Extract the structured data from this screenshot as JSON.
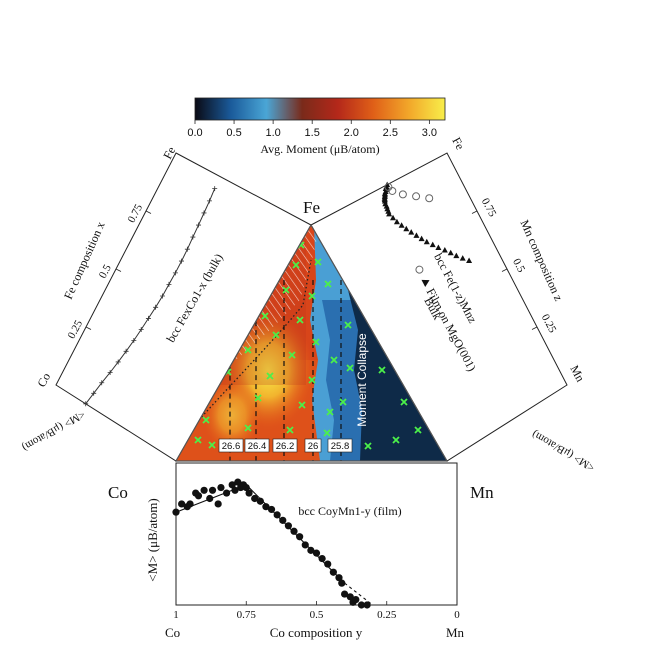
{
  "colorbar": {
    "label": "Avg. Moment (μB/atom)",
    "ticks": [
      "0.0",
      "0.5",
      "1.0",
      "1.5",
      "2.0",
      "2.5",
      "3.0"
    ],
    "tick_values": [
      0.0,
      0.5,
      1.0,
      1.5,
      2.0,
      2.5,
      3.0
    ],
    "range": [
      0.0,
      3.2
    ],
    "colormap": [
      "#0a0a14",
      "#1a5a9a",
      "#4aa6d6",
      "#7a2a1a",
      "#b4281a",
      "#e06018",
      "#f2a82a",
      "#f8ee4a"
    ]
  },
  "ternary": {
    "corners": {
      "top": "Fe",
      "left": "Co",
      "right": "Mn"
    },
    "overlay_label": "Moment Collapse",
    "boxes": [
      "26.6",
      "26.4",
      "26.2",
      "26",
      "25.8"
    ]
  },
  "chart_data": [
    {
      "type": "line",
      "title": "bcc FexCo1-x (bulk)",
      "xlabel": "Fe composition x",
      "ylabel": "<M> (μB/atom)",
      "ticks": [
        "0.25",
        "0.5",
        "0.75"
      ],
      "corners": [
        "Fe",
        "Co"
      ],
      "x": [
        0.0,
        0.05,
        0.1,
        0.15,
        0.2,
        0.25,
        0.3,
        0.35,
        0.4,
        0.45,
        0.5,
        0.55,
        0.6,
        0.65,
        0.7,
        0.75,
        0.8,
        0.85,
        0.9,
        0.95
      ],
      "values": [
        1.65,
        1.75,
        1.85,
        1.97,
        2.07,
        2.16,
        2.24,
        2.3,
        2.35,
        2.4,
        2.43,
        2.44,
        2.45,
        2.44,
        2.42,
        2.38,
        2.35,
        2.31,
        2.27,
        2.22
      ],
      "ylim": [
        0,
        3
      ]
    },
    {
      "type": "scatter",
      "title": "bcc Fe(1-z)Mnz",
      "xlabel": "Mn composition z",
      "ylabel": "<M> (μB/atom)",
      "ticks": [
        "0.25",
        "0.5",
        "0.75"
      ],
      "corners": [
        "Fe",
        "Mn"
      ],
      "legend": [
        "Film on MgO(001)",
        "Bulk"
      ],
      "series": [
        {
          "name": "Film on MgO(001)",
          "marker": "triangle",
          "x": [
            0.0,
            0.005,
            0.01,
            0.015,
            0.02,
            0.025,
            0.03,
            0.035,
            0.04,
            0.045,
            0.05,
            0.06,
            0.07,
            0.08,
            0.09,
            0.1,
            0.12,
            0.14,
            0.16,
            0.18,
            0.2,
            0.22,
            0.24,
            0.26,
            0.28,
            0.3,
            0.32,
            0.34,
            0.36,
            0.38,
            0.4
          ],
          "values": [
            2.2,
            2.25,
            2.3,
            2.28,
            2.35,
            2.4,
            2.42,
            2.45,
            2.48,
            2.5,
            2.52,
            2.55,
            2.55,
            2.57,
            2.58,
            2.6,
            2.55,
            2.5,
            2.42,
            2.34,
            2.25,
            2.15,
            2.05,
            1.95,
            1.82,
            1.7,
            1.55,
            1.42,
            1.3,
            1.15,
            1.0
          ]
        },
        {
          "name": "Bulk",
          "marker": "circle",
          "x": [
            0.01,
            0.03,
            0.06,
            0.09,
            0.12
          ],
          "values": [
            2.2,
            2.15,
            1.9,
            1.55,
            1.2
          ]
        }
      ],
      "ylim": [
        0,
        3
      ]
    },
    {
      "type": "scatter",
      "title": "bcc CoyMn1-y (film)",
      "xlabel": "Co composition y",
      "ylabel": "<M> (μB/atom)",
      "xticks": [
        "1",
        "0.75",
        "0.5",
        "0.25",
        "0"
      ],
      "corners": [
        "Co",
        "Mn"
      ],
      "x": [
        1.0,
        0.98,
        0.96,
        0.95,
        0.93,
        0.92,
        0.9,
        0.88,
        0.87,
        0.85,
        0.84,
        0.82,
        0.8,
        0.79,
        0.78,
        0.77,
        0.76,
        0.75,
        0.74,
        0.72,
        0.7,
        0.68,
        0.66,
        0.64,
        0.62,
        0.6,
        0.58,
        0.56,
        0.54,
        0.52,
        0.5,
        0.48,
        0.46,
        0.44,
        0.42,
        0.41,
        0.4,
        0.38,
        0.37,
        0.36,
        0.34,
        0.32
      ],
      "values": [
        1.7,
        1.85,
        1.8,
        1.85,
        2.05,
        2.0,
        2.1,
        1.95,
        2.1,
        1.85,
        2.15,
        2.05,
        2.2,
        2.1,
        2.25,
        2.15,
        2.2,
        2.15,
        2.05,
        1.95,
        1.9,
        1.8,
        1.75,
        1.65,
        1.55,
        1.45,
        1.35,
        1.25,
        1.1,
        1.0,
        0.95,
        0.85,
        0.75,
        0.6,
        0.5,
        0.4,
        0.2,
        0.15,
        0.05,
        0.1,
        0.0,
        0.0
      ],
      "fit_line": {
        "x": [
          1.0,
          0.75,
          0.4,
          0.3
        ],
        "values": [
          1.7,
          2.2,
          0.4,
          0.0
        ]
      },
      "ylim": [
        0,
        2.6
      ]
    }
  ]
}
